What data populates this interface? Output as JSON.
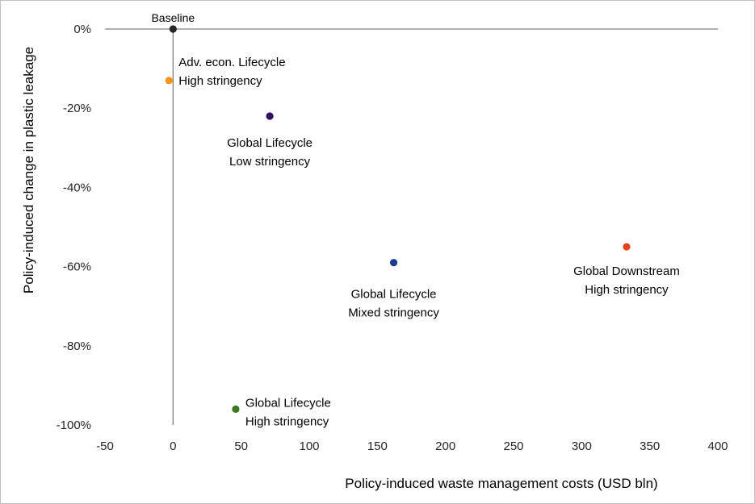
{
  "chart_data": {
    "type": "scatter",
    "title": "",
    "xlabel": "Policy-induced waste management costs (USD bln)",
    "ylabel": "Policy-induced change in plastic leakage",
    "xlim": [
      -50,
      400
    ],
    "ylim": [
      -100,
      0
    ],
    "x_ticks": [
      -50,
      0,
      50,
      100,
      150,
      200,
      250,
      300,
      350,
      400
    ],
    "x_tick_labels": [
      "-50",
      "0",
      "50",
      "100",
      "150",
      "200",
      "250",
      "300",
      "350",
      "400"
    ],
    "y_ticks": [
      0,
      -20,
      -40,
      -60,
      -80,
      -100
    ],
    "y_tick_labels": [
      "0%",
      "-20%",
      "-40%",
      "-60%",
      "-80%",
      "-100%"
    ],
    "grid": false,
    "legend": "none",
    "points": [
      {
        "name": "Baseline",
        "x": 0,
        "y": 0,
        "color": "#262626",
        "label_lines": [
          "Baseline"
        ],
        "label_position": "above"
      },
      {
        "name": "Adv. econ. Lifecycle High stringency",
        "x": -3,
        "y": -13,
        "color": "#f79418",
        "label_lines": [
          "Adv. econ. Lifecycle",
          "High stringency"
        ],
        "label_position": "right"
      },
      {
        "name": "Global Lifecycle Low stringency",
        "x": 71,
        "y": -22,
        "color": "#2e0f59",
        "label_lines": [
          "Global Lifecycle",
          "Low stringency"
        ],
        "label_position": "below"
      },
      {
        "name": "Global Lifecycle Mixed stringency",
        "x": 162,
        "y": -59,
        "color": "#1f3a93",
        "label_lines": [
          "Global Lifecycle",
          "Mixed stringency"
        ],
        "label_position": "below"
      },
      {
        "name": "Global Downstream High stringency",
        "x": 333,
        "y": -55,
        "color": "#e8401c",
        "label_lines": [
          "Global Downstream",
          "High stringency"
        ],
        "label_position": "below"
      },
      {
        "name": "Global Lifecycle High stringency",
        "x": 46,
        "y": -96,
        "color": "#3a7a1e",
        "label_lines": [
          "Global Lifecycle",
          "High stringency"
        ],
        "label_position": "right"
      }
    ]
  }
}
